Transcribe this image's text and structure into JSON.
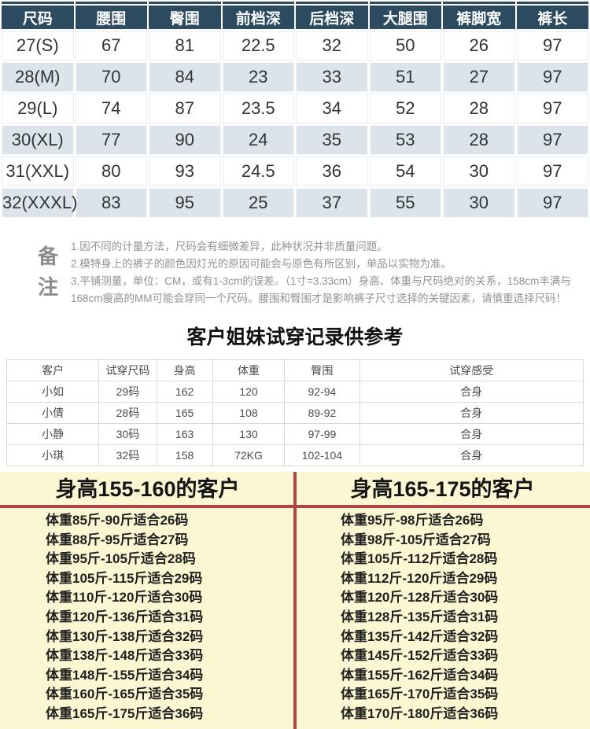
{
  "size_chart": {
    "headers": [
      "尺码",
      "腰围",
      "臀围",
      "前档深",
      "后档深",
      "大腿围",
      "裤脚宽",
      "裤长"
    ],
    "rows": [
      [
        "27(S)",
        "67",
        "81",
        "22.5",
        "32",
        "50",
        "26",
        "97"
      ],
      [
        "28(M)",
        "70",
        "84",
        "23",
        "33",
        "51",
        "27",
        "97"
      ],
      [
        "29(L)",
        "74",
        "87",
        "23.5",
        "34",
        "52",
        "28",
        "97"
      ],
      [
        "30(XL)",
        "77",
        "90",
        "24",
        "35",
        "53",
        "28",
        "97"
      ],
      [
        "31(XXL)",
        "80",
        "93",
        "24.5",
        "36",
        "54",
        "30",
        "97"
      ],
      [
        "32(XXXL)",
        "83",
        "95",
        "25",
        "37",
        "55",
        "30",
        "97"
      ]
    ]
  },
  "remarks": {
    "label": "备注",
    "lines": [
      "1.因不同的计量方法，尺码会有细微差异，此种状况并非质量问题。",
      "2.模特身上的裤子的颜色因灯光的原因可能会与原色有所区别，单品以实物为准。",
      "3.平铺测量，单位：CM，或有1-3cm的误差。（1寸=3.33cm）身高、体重与尺码绝对的关系，158cm丰满与168cm瘦高的MM可能会穿同一个尺码。腰围和臀围才是影响裤子尺寸选择的关键因素，请慎重选择尺码！"
    ]
  },
  "tryon": {
    "title": "客户姐妹试穿记录供参考",
    "headers": [
      "客户",
      "试穿尺码",
      "身高",
      "体重",
      "臀围",
      "试穿感受"
    ],
    "rows": [
      [
        "小如",
        "29码",
        "162",
        "120",
        "92-94",
        "合身"
      ],
      [
        "小倩",
        "28码",
        "165",
        "108",
        "89-92",
        "合身"
      ],
      [
        "小静",
        "30码",
        "163",
        "130",
        "97-99",
        "合身"
      ],
      [
        "小琪",
        "32码",
        "158",
        "72KG",
        "102-104",
        "合身"
      ]
    ]
  },
  "recommendations": {
    "left": {
      "title": "身高155-160的客户",
      "items": [
        "体重85斤-90斤适合26码",
        "体重88斤-95斤适合27码",
        "体重95斤-105斤适合28码",
        "体重105斤-115斤适合29码",
        "体重110斤-120斤适合30码",
        "体重120斤-136斤适合31码",
        "体重130斤-138斤适合32码",
        "体重138斤-148斤适合33码",
        "体重148斤-155斤适合34码",
        "体重160斤-165斤适合35码",
        "体重165斤-175斤适合36码"
      ]
    },
    "right": {
      "title": "身高165-175的客户",
      "items": [
        "体重95斤-98斤适合26码",
        "体重98斤-105斤适合27码",
        "体重105斤-112斤适合28码",
        "体重112斤-120斤适合29码",
        "体重120斤-128斤适合30码",
        "体重128斤-135斤适合31码",
        "体重135斤-142斤适合32码",
        "体重145斤-152斤适合33码",
        "体重155斤-162斤适合34码",
        "体重165斤-170斤适合35码",
        "体重170斤-180斤适合36码"
      ]
    }
  },
  "colors": {
    "header_bg": "#2c4b60",
    "alt_row_bg": "#dde3ea",
    "accent_red": "#b04548",
    "panel_yellow": "#faf7d2"
  }
}
